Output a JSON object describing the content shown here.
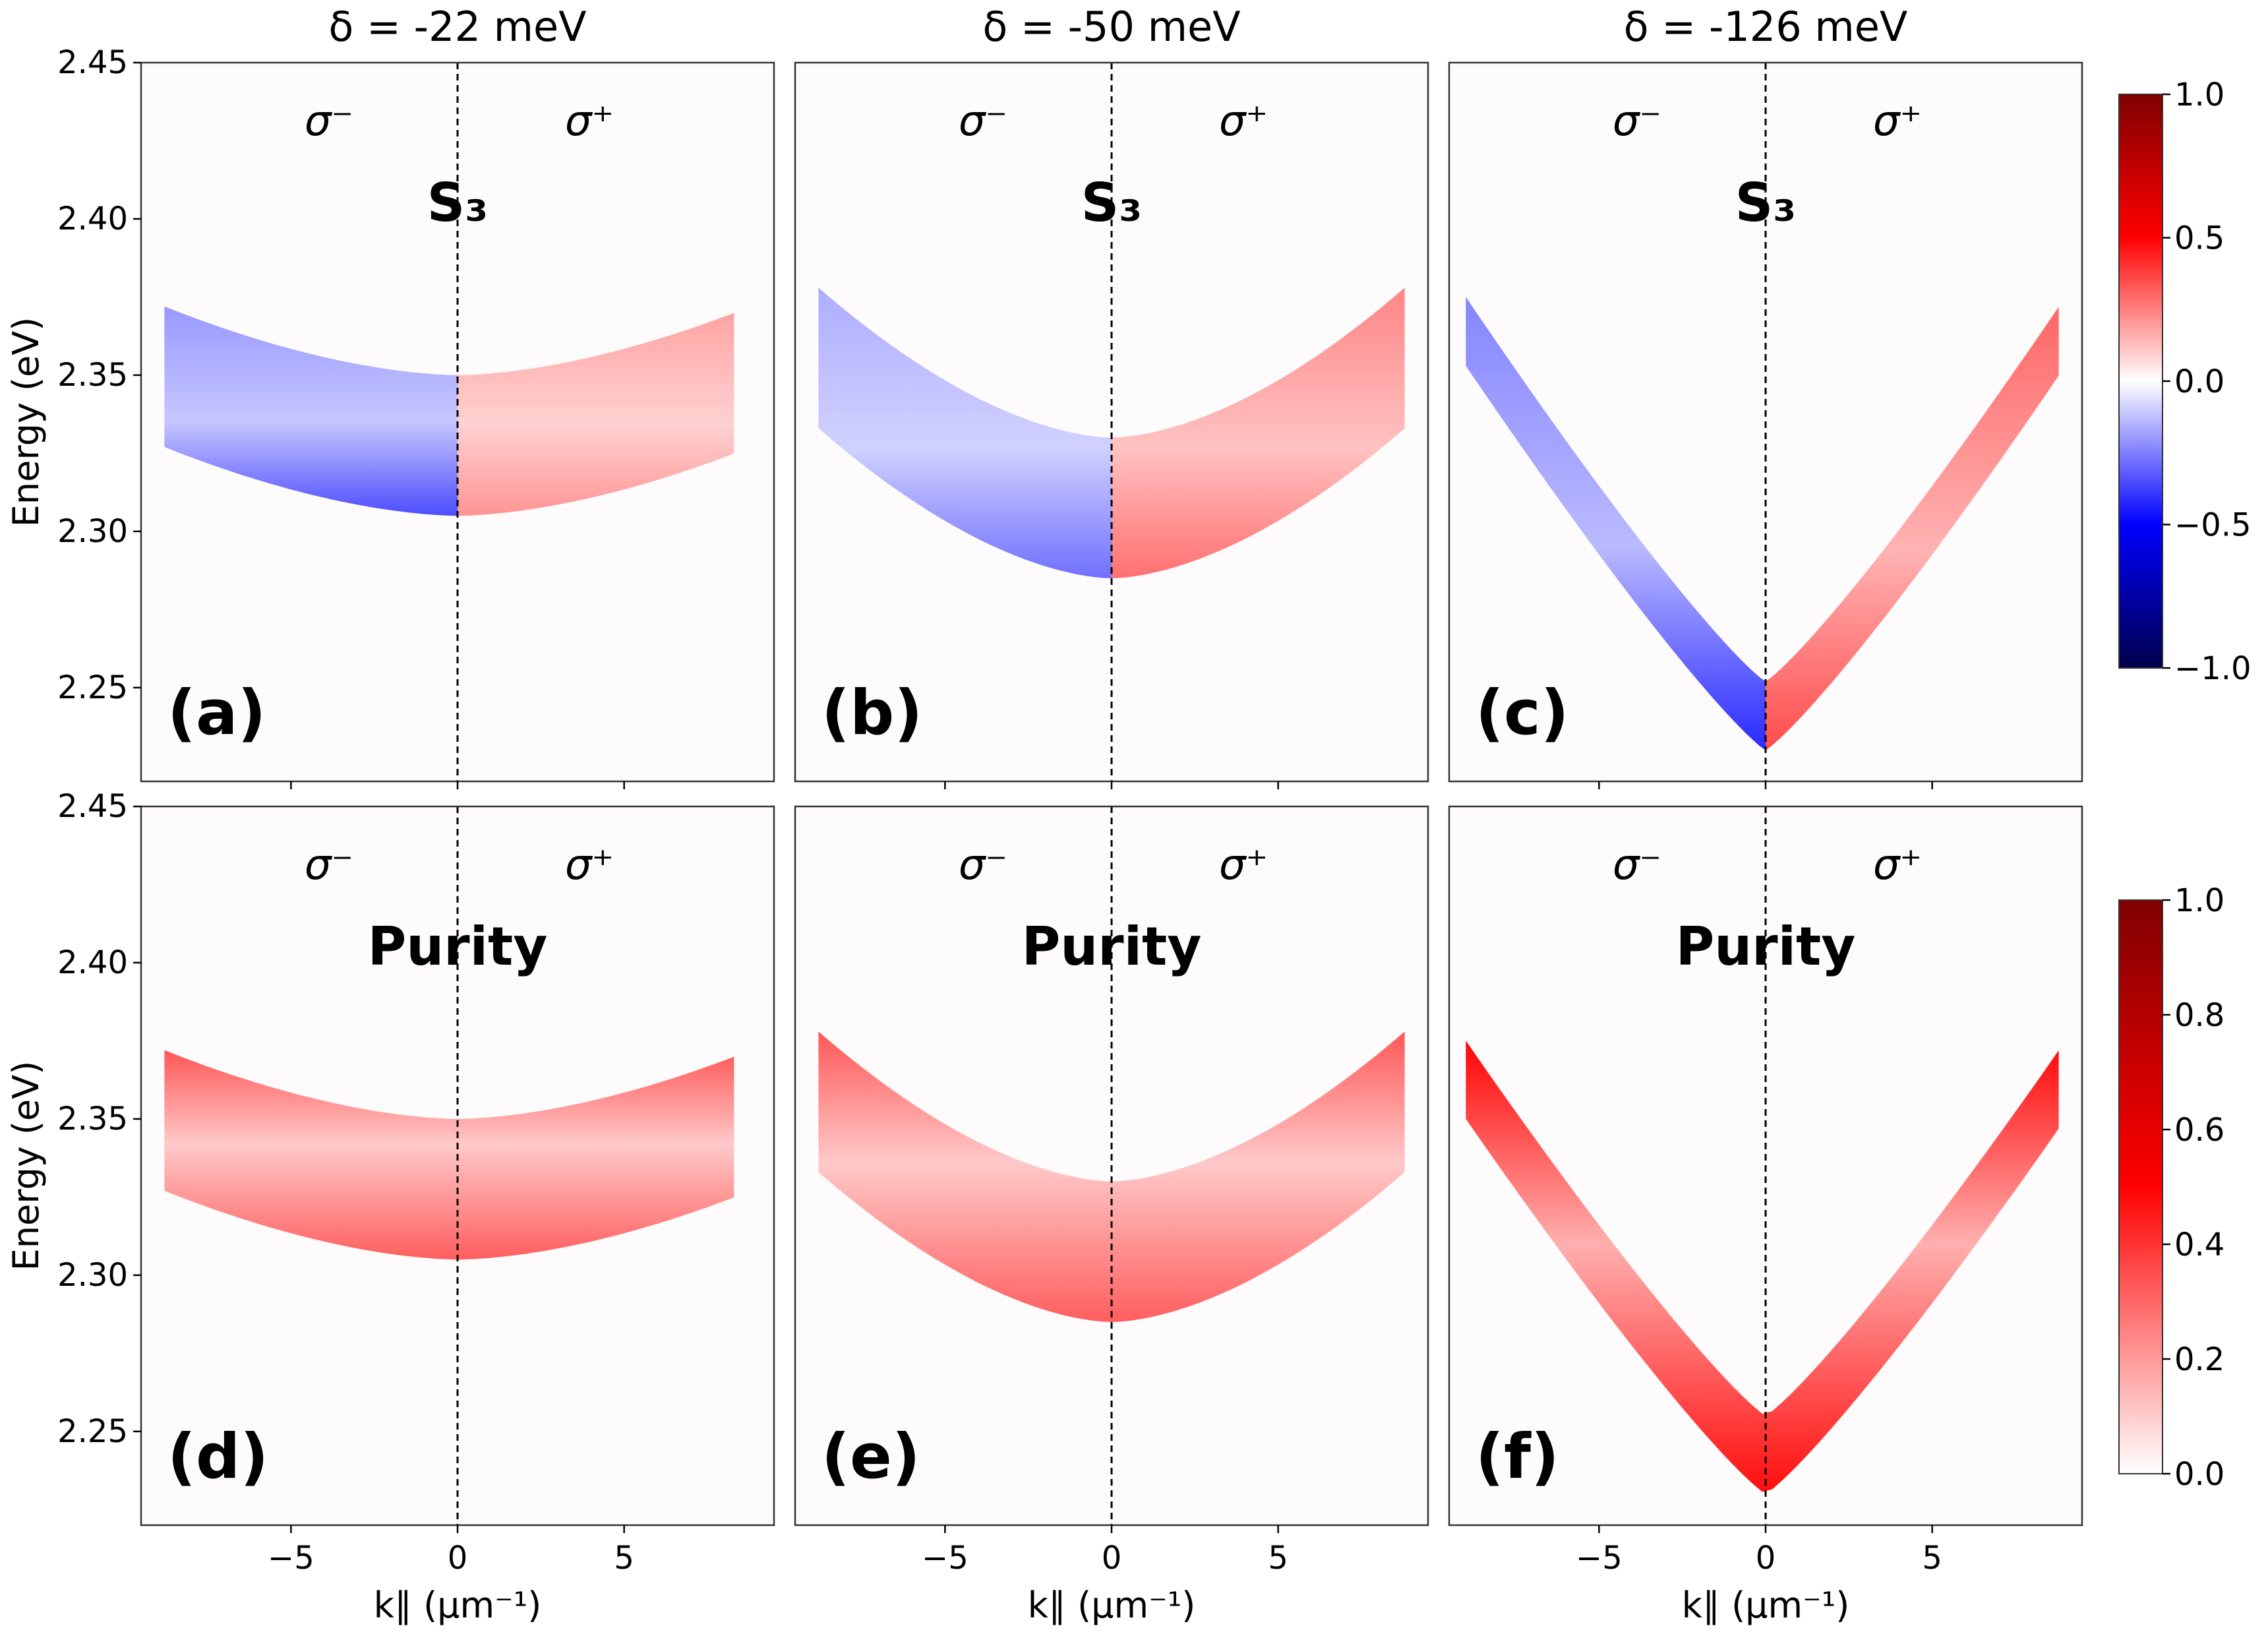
{
  "figure": {
    "column_titles": [
      "δ = -22 meV",
      "δ = -50 meV",
      "δ = -126 meV"
    ],
    "sigma_left": "σ⁻",
    "sigma_right": "σ⁺",
    "row_labels": [
      "S₃",
      "Purity"
    ],
    "panel_letters": [
      "(a)",
      "(b)",
      "(c)",
      "(d)",
      "(e)",
      "(f)"
    ],
    "y_axis_label": "Energy (eV)",
    "x_axis_label": "k∥ (μm⁻¹)",
    "colorbar_top": {
      "colormap": "seismic",
      "range": [
        -1.0,
        1.0
      ],
      "ticks": [
        "1.0",
        "0.5",
        "0.0",
        "−0.5",
        "−1.0"
      ],
      "tick_values": [
        1.0,
        0.5,
        0.0,
        -0.5,
        -1.0
      ],
      "colors": [
        "#00004c",
        "#0000ff",
        "#ffffff",
        "#ff0000",
        "#800000"
      ]
    },
    "colorbar_bottom": {
      "colormap": "white-red",
      "range": [
        0.0,
        1.0
      ],
      "ticks": [
        "1.0",
        "0.8",
        "0.6",
        "0.4",
        "0.2",
        "0.0"
      ],
      "tick_values": [
        1.0,
        0.8,
        0.6,
        0.4,
        0.2,
        0.0
      ],
      "colors": [
        "#ffffff",
        "#ff0000",
        "#800000"
      ]
    }
  },
  "chart_data": [
    {
      "type": "heatmap",
      "panel": "(a)",
      "quantity": "S3",
      "detuning_meV": -22,
      "xlim": [
        -9.5,
        9.5
      ],
      "ylim": [
        2.22,
        2.45
      ],
      "x_ticks": [
        -5,
        0,
        5
      ],
      "x_tick_labels": [
        "−5",
        "0",
        "5"
      ],
      "y_ticks": [
        2.25,
        2.3,
        2.35,
        2.4,
        2.45
      ],
      "y_tick_labels": [
        "2.25",
        "2.30",
        "2.35",
        "2.40",
        "2.45"
      ],
      "band": {
        "k_range": [
          -8.8,
          8.3
        ],
        "min_energy_eV": 2.305,
        "max_energy_eV": 2.372,
        "thickness_eV": 0.045
      },
      "typical_value_left": -0.25,
      "typical_value_right": 0.15,
      "divider_k": 0
    },
    {
      "type": "heatmap",
      "panel": "(b)",
      "quantity": "S3",
      "detuning_meV": -50,
      "xlim": [
        -9.5,
        9.5
      ],
      "ylim": [
        2.22,
        2.45
      ],
      "x_ticks": [
        -5,
        0,
        5
      ],
      "x_tick_labels": [
        "−5",
        "0",
        "5"
      ],
      "y_ticks": [
        2.25,
        2.3,
        2.35,
        2.4,
        2.45
      ],
      "y_tick_labels": [
        "2.25",
        "2.30",
        "2.35",
        "2.40",
        "2.45"
      ],
      "band": {
        "k_range": [
          -8.8,
          8.8
        ],
        "min_energy_eV": 2.285,
        "max_energy_eV": 2.378,
        "thickness_eV": 0.045
      },
      "typical_value_left": -0.2,
      "typical_value_right": 0.2,
      "divider_k": 0
    },
    {
      "type": "heatmap",
      "panel": "(c)",
      "quantity": "S3",
      "detuning_meV": -126,
      "xlim": [
        -9.5,
        9.5
      ],
      "ylim": [
        2.22,
        2.45
      ],
      "x_ticks": [
        -5,
        0,
        5
      ],
      "x_tick_labels": [
        "−5",
        "0",
        "5"
      ],
      "y_ticks": [
        2.25,
        2.3,
        2.35,
        2.4,
        2.45
      ],
      "y_tick_labels": [
        "2.25",
        "2.30",
        "2.35",
        "2.40",
        "2.45"
      ],
      "band": {
        "k_range": [
          -9.0,
          8.8
        ],
        "min_energy_eV": 2.23,
        "max_energy_eV": 2.375,
        "thickness_eV": 0.022
      },
      "typical_value_left": -0.3,
      "typical_value_right": 0.25,
      "divider_k": 0
    },
    {
      "type": "heatmap",
      "panel": "(d)",
      "quantity": "Purity",
      "detuning_meV": -22,
      "xlim": [
        -9.5,
        9.5
      ],
      "ylim": [
        2.22,
        2.45
      ],
      "x_ticks": [
        -5,
        0,
        5
      ],
      "x_tick_labels": [
        "−5",
        "0",
        "5"
      ],
      "y_ticks": [
        2.25,
        2.3,
        2.35,
        2.4,
        2.45
      ],
      "y_tick_labels": [
        "2.25",
        "2.30",
        "2.35",
        "2.40",
        "2.45"
      ],
      "band": {
        "k_range": [
          -8.8,
          8.3
        ],
        "min_energy_eV": 2.305,
        "max_energy_eV": 2.372,
        "thickness_eV": 0.045
      },
      "typical_value": 0.3,
      "divider_k": 0
    },
    {
      "type": "heatmap",
      "panel": "(e)",
      "quantity": "Purity",
      "detuning_meV": -50,
      "xlim": [
        -9.5,
        9.5
      ],
      "ylim": [
        2.22,
        2.45
      ],
      "x_ticks": [
        -5,
        0,
        5
      ],
      "x_tick_labels": [
        "−5",
        "0",
        "5"
      ],
      "y_ticks": [
        2.25,
        2.3,
        2.35,
        2.4,
        2.45
      ],
      "y_tick_labels": [
        "2.25",
        "2.30",
        "2.35",
        "2.40",
        "2.45"
      ],
      "band": {
        "k_range": [
          -8.8,
          8.8
        ],
        "min_energy_eV": 2.285,
        "max_energy_eV": 2.378,
        "thickness_eV": 0.045
      },
      "typical_value": 0.3,
      "divider_k": 0
    },
    {
      "type": "heatmap",
      "panel": "(f)",
      "quantity": "Purity",
      "detuning_meV": -126,
      "xlim": [
        -9.5,
        9.5
      ],
      "ylim": [
        2.22,
        2.45
      ],
      "x_ticks": [
        -5,
        0,
        5
      ],
      "x_tick_labels": [
        "−5",
        "0",
        "5"
      ],
      "y_ticks": [
        2.25,
        2.3,
        2.35,
        2.4,
        2.45
      ],
      "y_tick_labels": [
        "2.25",
        "2.30",
        "2.35",
        "2.40",
        "2.45"
      ],
      "band": {
        "k_range": [
          -9.0,
          8.8
        ],
        "min_energy_eV": 2.23,
        "max_energy_eV": 2.375,
        "thickness_eV": 0.025
      },
      "typical_value": 0.45,
      "divider_k": 0
    }
  ]
}
